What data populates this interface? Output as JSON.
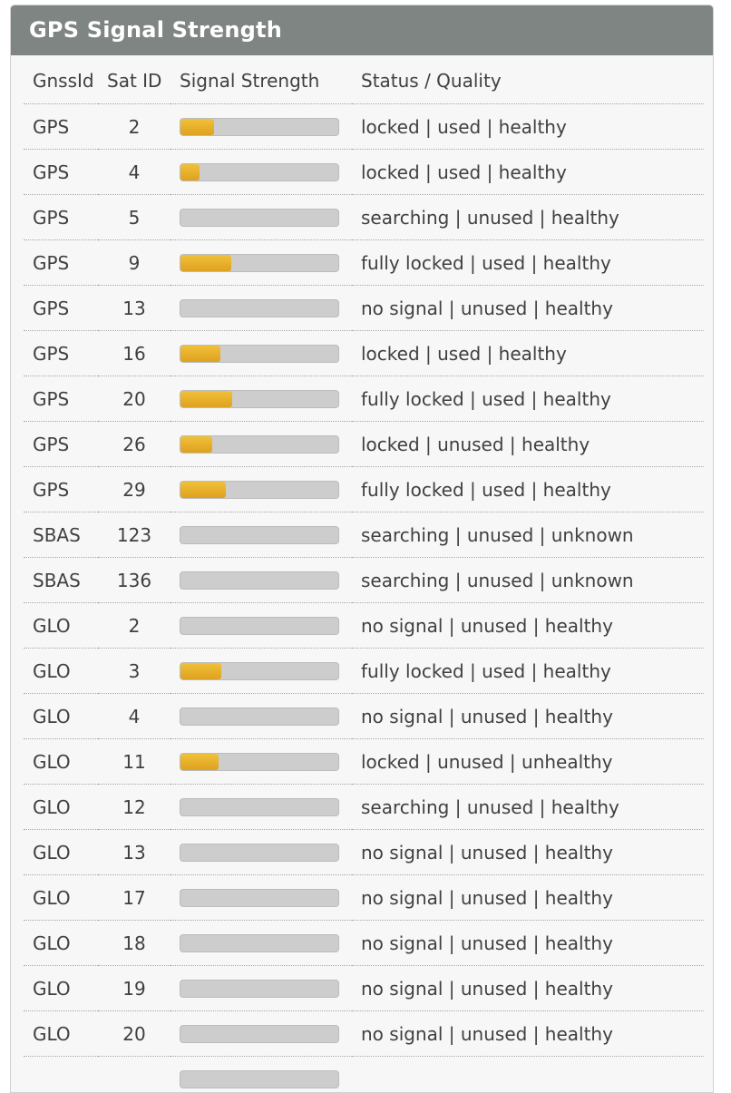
{
  "panel": {
    "title": "GPS Signal Strength"
  },
  "columns": [
    "GnssId",
    "Sat ID",
    "Signal Strength",
    "Status / Quality"
  ],
  "rows": [
    {
      "gnss": "GPS",
      "sat": "2",
      "signal": 0.21,
      "status": "locked | used | healthy"
    },
    {
      "gnss": "GPS",
      "sat": "4",
      "signal": 0.12,
      "status": "locked | used | healthy"
    },
    {
      "gnss": "GPS",
      "sat": "5",
      "signal": 0,
      "status": "searching | unused | healthy"
    },
    {
      "gnss": "GPS",
      "sat": "9",
      "signal": 0.32,
      "status": "fully locked | used | healthy"
    },
    {
      "gnss": "GPS",
      "sat": "13",
      "signal": 0,
      "status": "no signal | unused | healthy"
    },
    {
      "gnss": "GPS",
      "sat": "16",
      "signal": 0.25,
      "status": "locked | used | healthy"
    },
    {
      "gnss": "GPS",
      "sat": "20",
      "signal": 0.33,
      "status": "fully locked | used | healthy"
    },
    {
      "gnss": "GPS",
      "sat": "26",
      "signal": 0.2,
      "status": "locked | unused | healthy"
    },
    {
      "gnss": "GPS",
      "sat": "29",
      "signal": 0.29,
      "status": "fully locked | used | healthy"
    },
    {
      "gnss": "SBAS",
      "sat": "123",
      "signal": 0,
      "status": "searching | unused | unknown"
    },
    {
      "gnss": "SBAS",
      "sat": "136",
      "signal": 0,
      "status": "searching | unused | unknown"
    },
    {
      "gnss": "GLO",
      "sat": "2",
      "signal": 0,
      "status": "no signal | unused | healthy"
    },
    {
      "gnss": "GLO",
      "sat": "3",
      "signal": 0.26,
      "status": "fully locked | used | healthy"
    },
    {
      "gnss": "GLO",
      "sat": "4",
      "signal": 0,
      "status": "no signal | unused | healthy"
    },
    {
      "gnss": "GLO",
      "sat": "11",
      "signal": 0.24,
      "status": "locked | unused | unhealthy"
    },
    {
      "gnss": "GLO",
      "sat": "12",
      "signal": 0,
      "status": "searching | unused | healthy"
    },
    {
      "gnss": "GLO",
      "sat": "13",
      "signal": 0,
      "status": "no signal | unused | healthy"
    },
    {
      "gnss": "GLO",
      "sat": "17",
      "signal": 0,
      "status": "no signal | unused | healthy"
    },
    {
      "gnss": "GLO",
      "sat": "18",
      "signal": 0,
      "status": "no signal | unused | healthy"
    },
    {
      "gnss": "GLO",
      "sat": "19",
      "signal": 0,
      "status": "no signal | unused | healthy"
    },
    {
      "gnss": "GLO",
      "sat": "20",
      "signal": 0,
      "status": "no signal | unused | healthy"
    },
    {
      "gnss": "",
      "sat": "",
      "signal": 0,
      "status": ""
    }
  ],
  "colors": {
    "header_bg": "#7e8582",
    "bar_track": "#cdcdcd",
    "bar_fill": "#e6ad27",
    "text": "#404040"
  }
}
